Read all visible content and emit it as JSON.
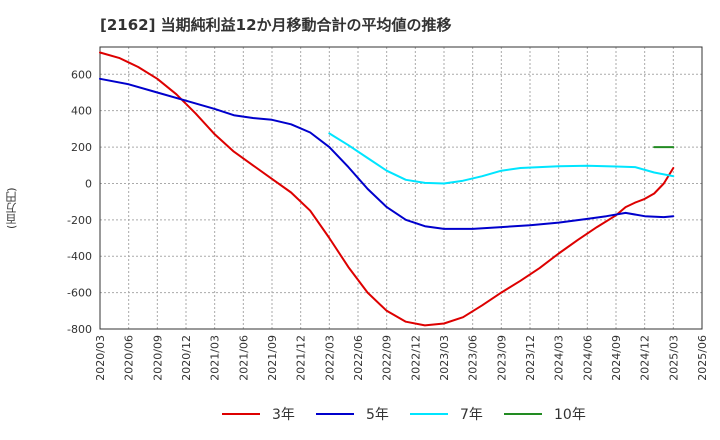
{
  "chart_data": {
    "type": "line",
    "title": "[2162]  当期純利益12か月移動合計の平均値の推移",
    "ylabel": "(百万円)",
    "xlabel": "",
    "ylim": [
      -800,
      750
    ],
    "yticks": [
      600,
      400,
      200,
      0,
      -200,
      -400,
      -600,
      -800
    ],
    "xticks": [
      "2020/03",
      "2020/06",
      "2020/09",
      "2020/12",
      "2021/03",
      "2021/06",
      "2021/09",
      "2021/12",
      "2022/03",
      "2022/06",
      "2022/09",
      "2022/12",
      "2023/03",
      "2023/06",
      "2023/09",
      "2023/12",
      "2024/03",
      "2024/06",
      "2024/09",
      "2024/12",
      "2025/03",
      "2025/06"
    ],
    "grid": true,
    "legend_position": "bottom",
    "series": [
      {
        "name": "3年",
        "color": "#dd0000",
        "points": [
          [
            "2020/03",
            720
          ],
          [
            "2020/05",
            690
          ],
          [
            "2020/07",
            640
          ],
          [
            "2020/09",
            575
          ],
          [
            "2020/11",
            490
          ],
          [
            "2021/01",
            385
          ],
          [
            "2021/03",
            270
          ],
          [
            "2021/05",
            175
          ],
          [
            "2021/07",
            100
          ],
          [
            "2021/09",
            25
          ],
          [
            "2021/11",
            -50
          ],
          [
            "2022/01",
            -150
          ],
          [
            "2022/03",
            -300
          ],
          [
            "2022/05",
            -460
          ],
          [
            "2022/07",
            -600
          ],
          [
            "2022/09",
            -700
          ],
          [
            "2022/11",
            -760
          ],
          [
            "2023/01",
            -780
          ],
          [
            "2023/03",
            -770
          ],
          [
            "2023/05",
            -735
          ],
          [
            "2023/07",
            -670
          ],
          [
            "2023/09",
            -600
          ],
          [
            "2023/11",
            -535
          ],
          [
            "2024/01",
            -465
          ],
          [
            "2024/03",
            -385
          ],
          [
            "2024/05",
            -310
          ],
          [
            "2024/07",
            -240
          ],
          [
            "2024/09",
            -175
          ],
          [
            "2024/10",
            -130
          ],
          [
            "2024/11",
            -105
          ],
          [
            "2024/12",
            -85
          ],
          [
            "2025/01",
            -55
          ],
          [
            "2025/02",
            0
          ],
          [
            "2025/03",
            85
          ]
        ]
      },
      {
        "name": "5年",
        "color": "#0000cc",
        "points": [
          [
            "2020/03",
            575
          ],
          [
            "2020/06",
            545
          ],
          [
            "2020/09",
            500
          ],
          [
            "2020/12",
            455
          ],
          [
            "2021/03",
            410
          ],
          [
            "2021/05",
            375
          ],
          [
            "2021/07",
            360
          ],
          [
            "2021/09",
            350
          ],
          [
            "2021/11",
            325
          ],
          [
            "2022/01",
            280
          ],
          [
            "2022/03",
            200
          ],
          [
            "2022/05",
            90
          ],
          [
            "2022/07",
            -30
          ],
          [
            "2022/09",
            -130
          ],
          [
            "2022/11",
            -200
          ],
          [
            "2023/01",
            -235
          ],
          [
            "2023/03",
            -250
          ],
          [
            "2023/06",
            -250
          ],
          [
            "2023/09",
            -240
          ],
          [
            "2023/12",
            -230
          ],
          [
            "2024/03",
            -215
          ],
          [
            "2024/06",
            -195
          ],
          [
            "2024/08",
            -180
          ],
          [
            "2024/10",
            -162
          ],
          [
            "2024/12",
            -180
          ],
          [
            "2025/02",
            -185
          ],
          [
            "2025/03",
            -180
          ]
        ]
      },
      {
        "name": "7年",
        "color": "#00e5ff",
        "points": [
          [
            "2022/03",
            275
          ],
          [
            "2022/05",
            210
          ],
          [
            "2022/07",
            140
          ],
          [
            "2022/09",
            70
          ],
          [
            "2022/11",
            20
          ],
          [
            "2023/01",
            3
          ],
          [
            "2023/03",
            0
          ],
          [
            "2023/05",
            15
          ],
          [
            "2023/07",
            40
          ],
          [
            "2023/09",
            70
          ],
          [
            "2023/11",
            85
          ],
          [
            "2024/01",
            90
          ],
          [
            "2024/03",
            95
          ],
          [
            "2024/06",
            97
          ],
          [
            "2024/09",
            93
          ],
          [
            "2024/11",
            90
          ],
          [
            "2025/01",
            60
          ],
          [
            "2025/03",
            40
          ]
        ]
      },
      {
        "name": "10年",
        "color": "#228b22",
        "points": [
          [
            "2025/01",
            200
          ],
          [
            "2025/03",
            200
          ]
        ]
      }
    ]
  }
}
